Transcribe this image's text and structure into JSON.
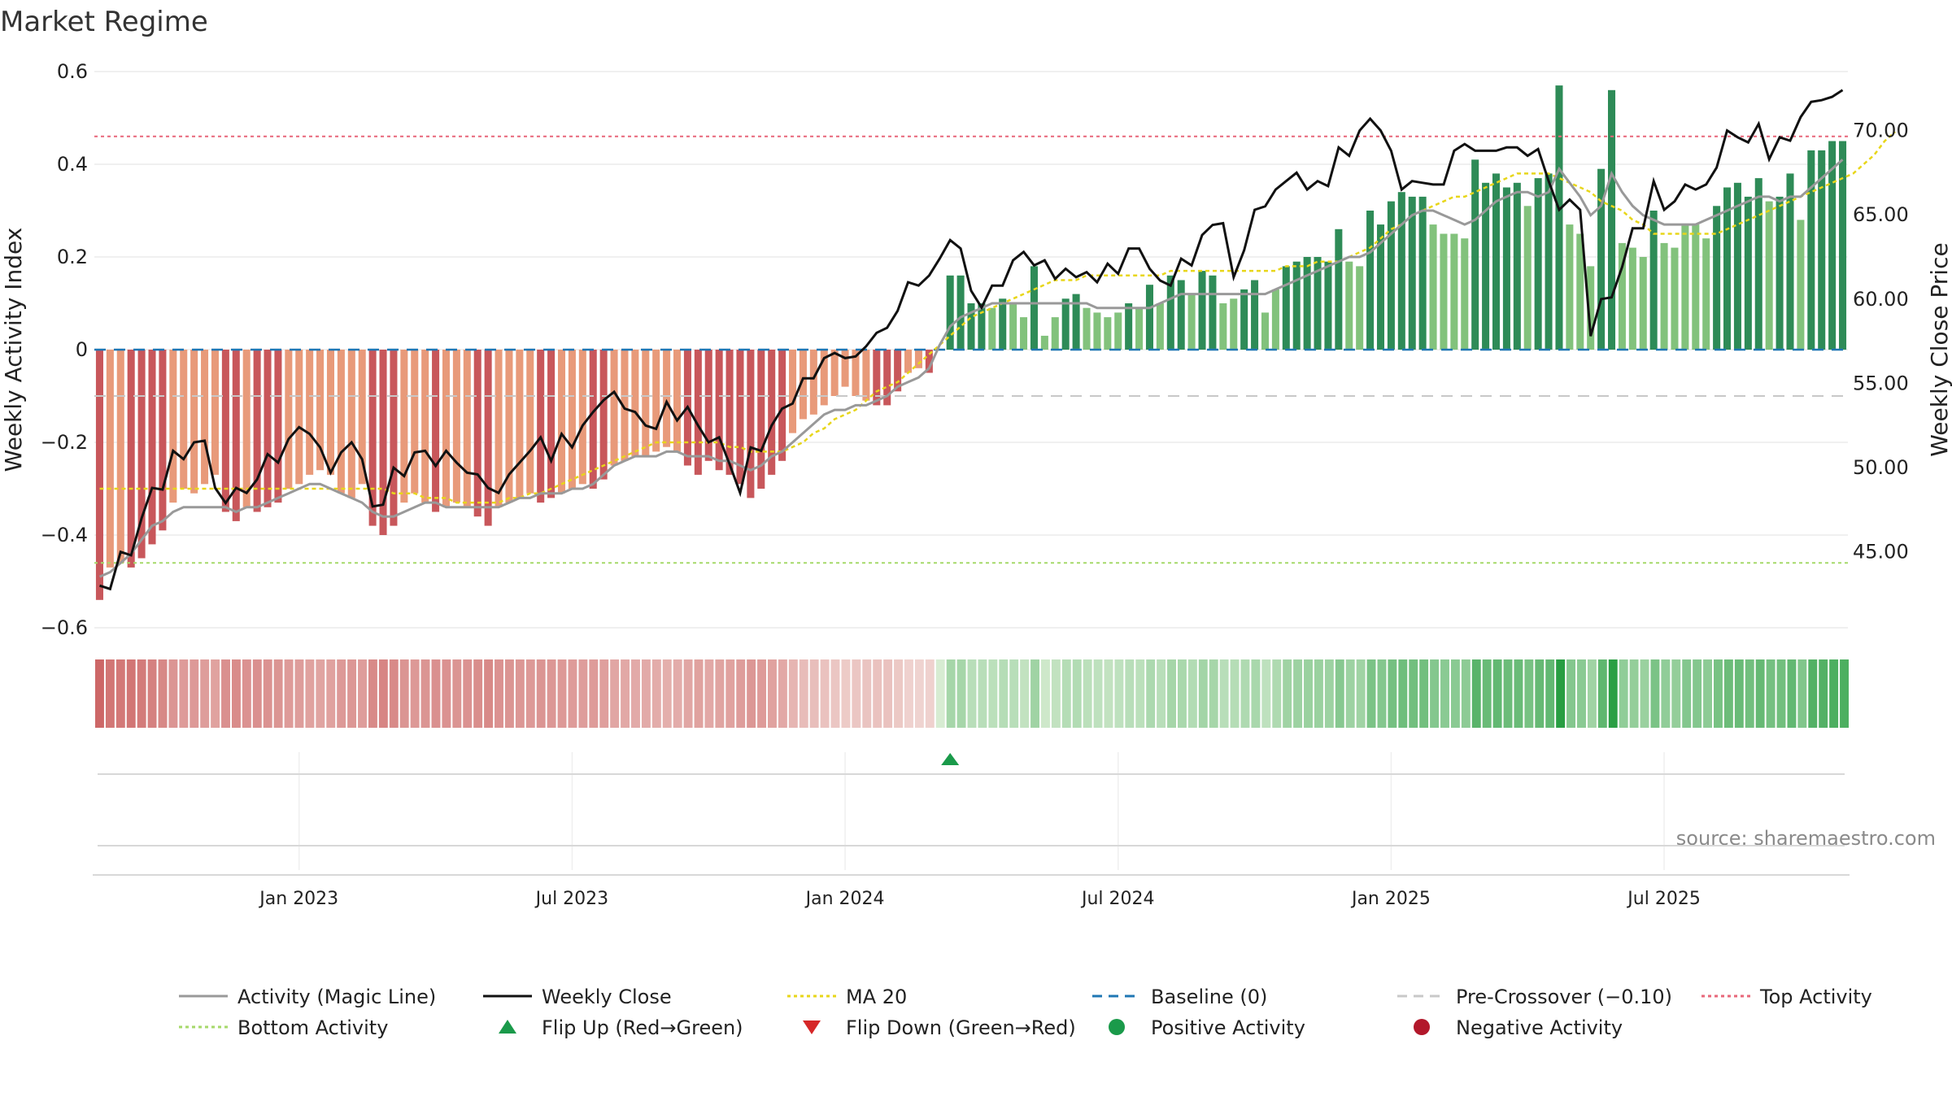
{
  "chart_data": {
    "type": "bar",
    "title": "Market Regime",
    "ylabel": "Weekly Activity Index",
    "y2label": "Weekly Close Price",
    "ylim": [
      -0.6,
      0.6
    ],
    "y2lim": [
      40.5,
      73.5
    ],
    "yticks": [
      {
        "v": -0.6,
        "label": "−0.6"
      },
      {
        "v": -0.4,
        "label": "−0.4"
      },
      {
        "v": -0.2,
        "label": "−0.2"
      },
      {
        "v": 0,
        "label": "0"
      },
      {
        "v": 0.2,
        "label": "0.2"
      },
      {
        "v": 0.4,
        "label": "0.4"
      },
      {
        "v": 0.6,
        "label": "0.6"
      }
    ],
    "y2ticks": [
      {
        "v": 45,
        "label": "45.00"
      },
      {
        "v": 50,
        "label": "50.00"
      },
      {
        "v": 55,
        "label": "55.00"
      },
      {
        "v": 60,
        "label": "60.00"
      },
      {
        "v": 65,
        "label": "65.00"
      },
      {
        "v": 70,
        "label": "70.00"
      }
    ],
    "xticks": [
      {
        "i": 19,
        "label": "Jan 2023"
      },
      {
        "i": 45,
        "label": "Jul 2023"
      },
      {
        "i": 71,
        "label": "Jan 2024"
      },
      {
        "i": 97,
        "label": "Jul 2024"
      },
      {
        "i": 123,
        "label": "Jan 2025"
      },
      {
        "i": 149,
        "label": "Jul 2025"
      }
    ],
    "reference_lines": {
      "baseline": 0,
      "pre_crossover": -0.1,
      "top_activity": 0.46,
      "bottom_activity": -0.46
    },
    "activity_index": [
      -0.54,
      -0.47,
      -0.46,
      -0.47,
      -0.45,
      -0.42,
      -0.39,
      -0.33,
      -0.3,
      -0.31,
      -0.29,
      -0.27,
      -0.35,
      -0.37,
      -0.34,
      -0.35,
      -0.34,
      -0.33,
      -0.3,
      -0.29,
      -0.27,
      -0.26,
      -0.27,
      -0.31,
      -0.32,
      -0.29,
      -0.38,
      -0.4,
      -0.38,
      -0.33,
      -0.31,
      -0.33,
      -0.35,
      -0.34,
      -0.33,
      -0.34,
      -0.36,
      -0.38,
      -0.34,
      -0.33,
      -0.32,
      -0.31,
      -0.33,
      -0.32,
      -0.31,
      -0.3,
      -0.29,
      -0.3,
      -0.28,
      -0.25,
      -0.24,
      -0.23,
      -0.23,
      -0.22,
      -0.21,
      -0.22,
      -0.25,
      -0.27,
      -0.24,
      -0.26,
      -0.27,
      -0.29,
      -0.32,
      -0.3,
      -0.27,
      -0.24,
      -0.18,
      -0.15,
      -0.14,
      -0.12,
      -0.1,
      -0.08,
      -0.1,
      -0.11,
      -0.12,
      -0.12,
      -0.09,
      -0.05,
      -0.04,
      -0.05,
      0.0,
      0.16,
      0.16,
      0.1,
      0.1,
      0.09,
      0.11,
      0.1,
      0.07,
      0.18,
      0.03,
      0.07,
      0.11,
      0.12,
      0.09,
      0.08,
      0.07,
      0.08,
      0.1,
      0.09,
      0.14,
      0.1,
      0.16,
      0.15,
      0.12,
      0.17,
      0.16,
      0.1,
      0.11,
      0.13,
      0.15,
      0.08,
      0.13,
      0.18,
      0.19,
      0.2,
      0.2,
      0.19,
      0.26,
      0.19,
      0.18,
      0.3,
      0.27,
      0.32,
      0.34,
      0.33,
      0.33,
      0.27,
      0.25,
      0.25,
      0.24,
      0.41,
      0.36,
      0.38,
      0.35,
      0.36,
      0.31,
      0.37,
      0.38,
      0.57,
      0.27,
      0.25,
      0.18,
      0.39,
      0.56,
      0.23,
      0.22,
      0.2,
      0.3,
      0.23,
      0.22,
      0.27,
      0.27,
      0.24,
      0.31,
      0.35,
      0.36,
      0.33,
      0.37,
      0.32,
      0.33,
      0.38,
      0.28,
      0.43,
      0.43,
      0.45,
      0.45
    ],
    "magic_line": [
      -0.49,
      -0.48,
      -0.46,
      -0.44,
      -0.41,
      -0.38,
      -0.37,
      -0.35,
      -0.34,
      -0.34,
      -0.34,
      -0.34,
      -0.34,
      -0.35,
      -0.34,
      -0.34,
      -0.33,
      -0.32,
      -0.31,
      -0.3,
      -0.29,
      -0.29,
      -0.3,
      -0.31,
      -0.32,
      -0.33,
      -0.35,
      -0.36,
      -0.36,
      -0.35,
      -0.34,
      -0.33,
      -0.33,
      -0.34,
      -0.34,
      -0.34,
      -0.34,
      -0.34,
      -0.34,
      -0.33,
      -0.32,
      -0.32,
      -0.31,
      -0.31,
      -0.31,
      -0.3,
      -0.3,
      -0.29,
      -0.27,
      -0.25,
      -0.24,
      -0.23,
      -0.23,
      -0.23,
      -0.22,
      -0.22,
      -0.23,
      -0.23,
      -0.23,
      -0.24,
      -0.24,
      -0.25,
      -0.26,
      -0.25,
      -0.23,
      -0.22,
      -0.2,
      -0.18,
      -0.16,
      -0.14,
      -0.13,
      -0.13,
      -0.12,
      -0.12,
      -0.11,
      -0.1,
      -0.08,
      -0.07,
      -0.06,
      -0.04,
      0.01,
      0.05,
      0.07,
      0.08,
      0.09,
      0.1,
      0.1,
      0.1,
      0.1,
      0.1,
      0.1,
      0.1,
      0.1,
      0.1,
      0.1,
      0.09,
      0.09,
      0.09,
      0.09,
      0.09,
      0.09,
      0.1,
      0.11,
      0.12,
      0.12,
      0.12,
      0.12,
      0.12,
      0.12,
      0.12,
      0.12,
      0.12,
      0.13,
      0.14,
      0.15,
      0.16,
      0.17,
      0.18,
      0.19,
      0.2,
      0.2,
      0.21,
      0.23,
      0.25,
      0.27,
      0.29,
      0.3,
      0.3,
      0.29,
      0.28,
      0.27,
      0.28,
      0.3,
      0.32,
      0.33,
      0.34,
      0.34,
      0.33,
      0.34,
      0.39,
      0.36,
      0.33,
      0.29,
      0.31,
      0.38,
      0.34,
      0.31,
      0.29,
      0.28,
      0.27,
      0.27,
      0.27,
      0.27,
      0.28,
      0.29,
      0.3,
      0.31,
      0.32,
      0.33,
      0.33,
      0.32,
      0.33,
      0.33,
      0.35,
      0.37,
      0.39,
      0.41
    ],
    "ma20_index": [
      -0.3,
      -0.3,
      -0.3,
      -0.3,
      -0.3,
      -0.3,
      -0.3,
      -0.3,
      -0.3,
      -0.3,
      -0.3,
      -0.3,
      -0.3,
      -0.3,
      -0.3,
      -0.3,
      -0.3,
      -0.3,
      -0.3,
      -0.3,
      -0.3,
      -0.3,
      -0.3,
      -0.3,
      -0.3,
      -0.3,
      -0.3,
      -0.3,
      -0.31,
      -0.31,
      -0.31,
      -0.32,
      -0.32,
      -0.32,
      -0.33,
      -0.33,
      -0.33,
      -0.33,
      -0.33,
      -0.32,
      -0.32,
      -0.31,
      -0.31,
      -0.3,
      -0.29,
      -0.28,
      -0.27,
      -0.26,
      -0.25,
      -0.24,
      -0.23,
      -0.22,
      -0.21,
      -0.2,
      -0.2,
      -0.2,
      -0.2,
      -0.2,
      -0.2,
      -0.2,
      -0.21,
      -0.21,
      -0.22,
      -0.22,
      -0.22,
      -0.22,
      -0.21,
      -0.2,
      -0.18,
      -0.17,
      -0.15,
      -0.14,
      -0.13,
      -0.11,
      -0.09,
      -0.08,
      -0.07,
      -0.05,
      -0.03,
      -0.01,
      0.01,
      0.03,
      0.05,
      0.07,
      0.08,
      0.09,
      0.1,
      0.11,
      0.12,
      0.13,
      0.14,
      0.15,
      0.15,
      0.15,
      0.16,
      0.16,
      0.16,
      0.16,
      0.16,
      0.16,
      0.16,
      0.16,
      0.17,
      0.17,
      0.17,
      0.17,
      0.17,
      0.17,
      0.17,
      0.17,
      0.17,
      0.17,
      0.17,
      0.18,
      0.18,
      0.18,
      0.19,
      0.19,
      0.19,
      0.2,
      0.21,
      0.22,
      0.24,
      0.26,
      0.27,
      0.29,
      0.3,
      0.31,
      0.32,
      0.33,
      0.33,
      0.34,
      0.35,
      0.36,
      0.37,
      0.38,
      0.38,
      0.38,
      0.38,
      0.37,
      0.36,
      0.35,
      0.34,
      0.32,
      0.31,
      0.3,
      0.28,
      0.27,
      0.25,
      0.25,
      0.25,
      0.25,
      0.25,
      0.25,
      0.25,
      0.26,
      0.27,
      0.28,
      0.29,
      0.3,
      0.31,
      0.32,
      0.33,
      0.34,
      0.35,
      0.36,
      0.37,
      0.38,
      0.4,
      0.42,
      0.45,
      0.47
    ],
    "weekly_close": [
      43.0,
      42.8,
      45.0,
      44.8,
      47.0,
      48.8,
      48.7,
      51.0,
      50.5,
      51.5,
      51.6,
      48.8,
      47.9,
      48.8,
      48.5,
      49.3,
      50.8,
      50.3,
      51.7,
      52.4,
      52.0,
      51.2,
      49.7,
      50.9,
      51.5,
      50.5,
      47.7,
      47.8,
      50.0,
      49.5,
      50.9,
      51.0,
      50.1,
      51.0,
      50.3,
      49.7,
      49.6,
      48.8,
      48.5,
      49.6,
      50.3,
      51.0,
      51.8,
      50.4,
      52.0,
      51.2,
      52.5,
      53.3,
      54.0,
      54.5,
      53.5,
      53.3,
      52.5,
      52.3,
      53.9,
      52.8,
      53.6,
      52.5,
      51.5,
      51.8,
      50.2,
      48.5,
      51.2,
      51.0,
      52.5,
      53.5,
      53.8,
      55.3,
      55.3,
      56.5,
      56.8,
      56.5,
      56.6,
      57.2,
      58.0,
      58.3,
      59.3,
      61.0,
      60.8,
      61.4,
      62.4,
      63.5,
      63.0,
      60.5,
      59.5,
      60.8,
      60.8,
      62.3,
      62.8,
      62.0,
      62.3,
      61.2,
      61.8,
      61.3,
      61.6,
      61.0,
      62.1,
      61.5,
      63.0,
      63.0,
      61.8,
      61.1,
      60.8,
      62.4,
      62.0,
      63.8,
      64.4,
      64.5,
      61.3,
      62.9,
      65.3,
      65.5,
      66.5,
      67.0,
      67.5,
      66.5,
      67.0,
      66.7,
      69.0,
      68.5,
      70.0,
      70.7,
      70.0,
      68.8,
      66.5,
      67.0,
      66.9,
      66.8,
      66.8,
      68.8,
      69.2,
      68.8,
      68.8,
      68.8,
      69.0,
      69.0,
      68.5,
      68.9,
      67.0,
      65.3,
      65.9,
      65.3,
      57.8,
      60.0,
      60.1,
      61.9,
      64.2,
      64.2,
      67.0,
      65.3,
      65.8,
      66.8,
      66.5,
      66.8,
      67.8,
      70.0,
      69.6,
      69.3,
      70.4,
      68.3,
      69.6,
      69.4,
      70.8,
      71.7,
      71.8,
      72.0,
      72.4
    ],
    "flip_up": [
      {
        "i": 81
      }
    ],
    "flip_down": []
  },
  "legend": [
    {
      "label": "Activity (Magic Line)",
      "kind": "line",
      "color": "#999999",
      "dash": ""
    },
    {
      "label": "Weekly Close",
      "kind": "line",
      "color": "#111111",
      "dash": ""
    },
    {
      "label": "MA 20",
      "kind": "line",
      "color": "#e8d61a",
      "dash": "4 4"
    },
    {
      "label": "Baseline (0)",
      "kind": "line",
      "color": "#1f77b4",
      "dash": "12 8"
    },
    {
      "label": "Pre-Crossover (−0.10)",
      "kind": "line",
      "color": "#c8c8c8",
      "dash": "12 8"
    },
    {
      "label": "Top Activity",
      "kind": "line",
      "color": "#e8677a",
      "dash": "4 4"
    },
    {
      "label": "Bottom Activity",
      "kind": "line",
      "color": "#a6d96a",
      "dash": "4 4"
    },
    {
      "label": "Flip Up (Red→Green)",
      "kind": "tri-up",
      "color": "#1a9a4a"
    },
    {
      "label": "Flip Down (Green→Red)",
      "kind": "tri-down",
      "color": "#d62728"
    },
    {
      "label": "Positive Activity",
      "kind": "dot",
      "color": "#1a9a4a"
    },
    {
      "label": "Negative Activity",
      "kind": "dot",
      "color": "#b2182b"
    }
  ],
  "source": "source: sharemaestro.com",
  "colors": {
    "neg_dark": "#c8575b",
    "neg_light": "#e89a7a",
    "pos_dark": "#2e8b57",
    "pos_light": "#82c27c",
    "close": "#111111",
    "magic": "#999999",
    "ma20": "#e8d61a",
    "grid": "#ebebeb"
  }
}
